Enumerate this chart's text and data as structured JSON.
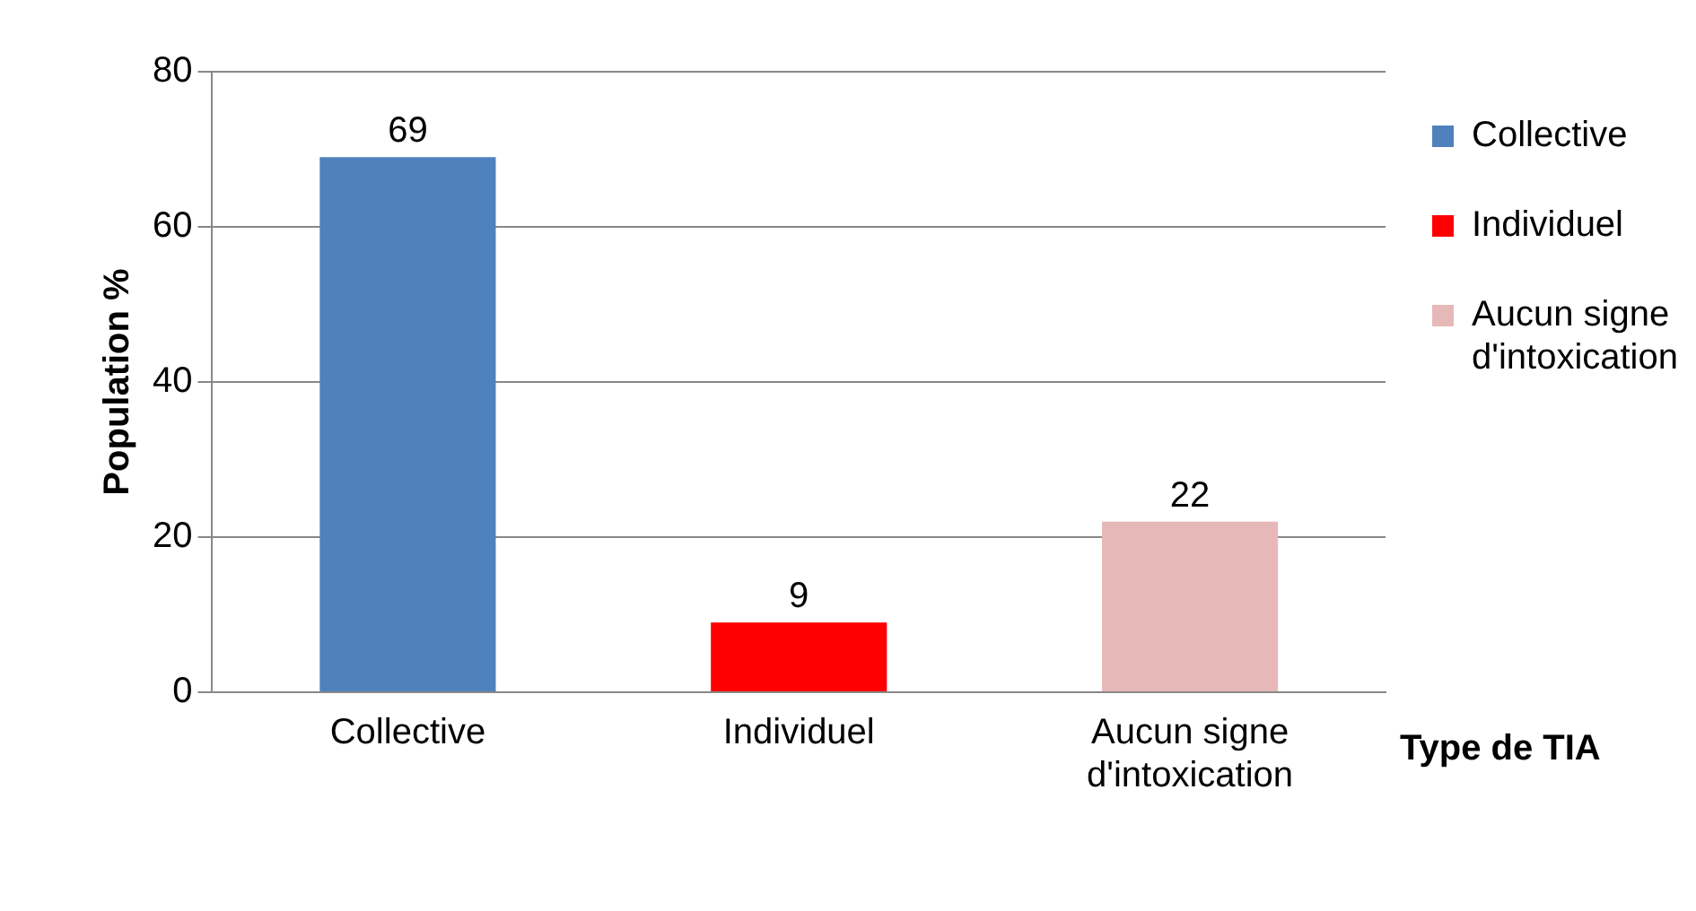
{
  "chart_data": {
    "type": "bar",
    "ylabel": "Population %",
    "xlabel": "Type de TIA",
    "categories": [
      "Collective",
      "Individuel",
      "Aucun signe d'intoxication"
    ],
    "series": [
      {
        "name": "Collective",
        "color": "#4f81bd",
        "values": [
          69,
          null,
          null
        ]
      },
      {
        "name": "Individuel",
        "color": "#ff0000",
        "values": [
          null,
          9,
          null
        ]
      },
      {
        "name": "Aucun signe d'intoxication",
        "color": "#e6b9b8",
        "values": [
          null,
          null,
          22
        ]
      }
    ],
    "ylim": [
      0,
      80
    ],
    "yticks": [
      0,
      20,
      40,
      60,
      80
    ],
    "grid": "y",
    "legend": "right",
    "data_labels": true
  }
}
